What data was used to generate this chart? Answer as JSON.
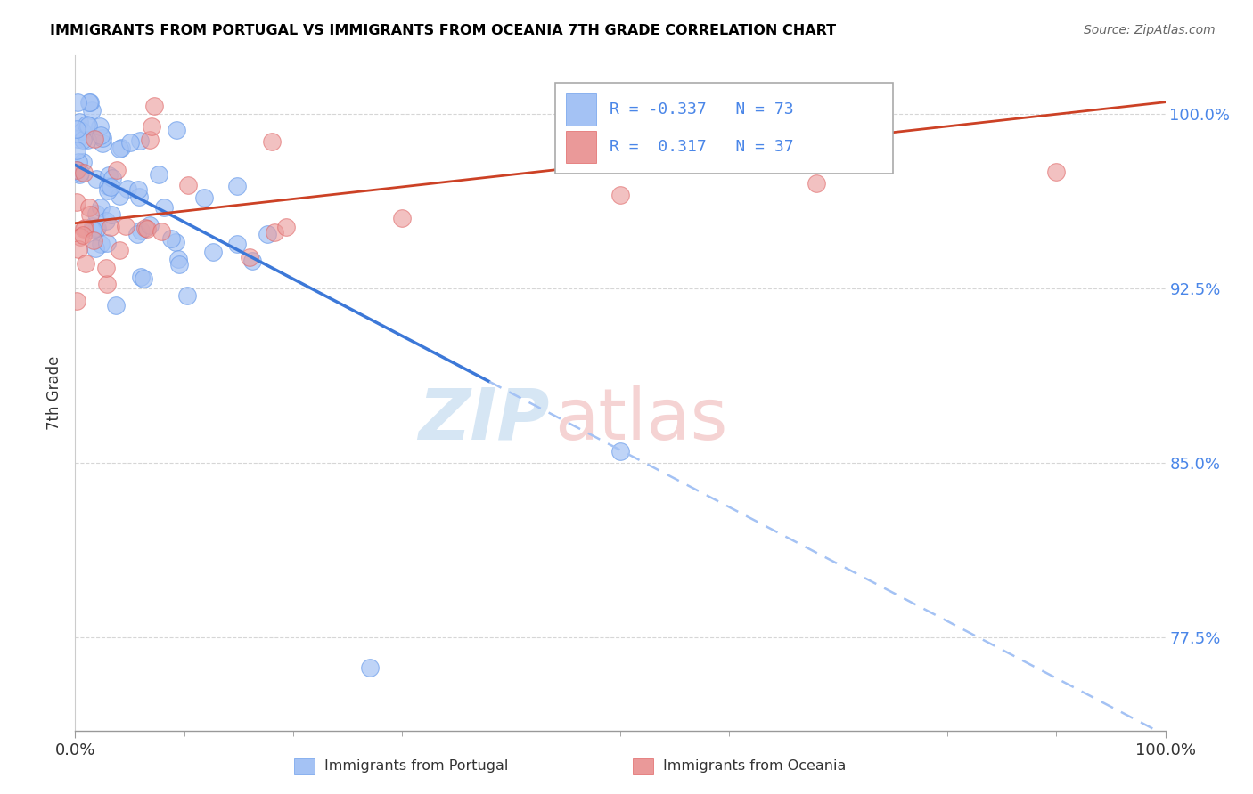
{
  "title": "IMMIGRANTS FROM PORTUGAL VS IMMIGRANTS FROM OCEANIA 7TH GRADE CORRELATION CHART",
  "source": "Source: ZipAtlas.com",
  "ylabel": "7th Grade",
  "yticks": [
    77.5,
    85.0,
    92.5,
    100.0
  ],
  "xlim": [
    0.0,
    1.0
  ],
  "ylim": [
    0.735,
    1.025
  ],
  "legend_line1": "R = -0.337   N = 73",
  "legend_line2": "R =  0.317   N = 37",
  "legend_label1": "Immigrants from Portugal",
  "legend_label2": "Immigrants from Oceania",
  "blue_color": "#a4c2f4",
  "pink_color": "#ea9999",
  "blue_edge": "#6d9eeb",
  "pink_edge": "#e06666",
  "trend_blue_solid": "#3c78d8",
  "trend_blue_dash": "#a4c2f4",
  "trend_pink": "#cc4125",
  "watermark_zip": "#cfe2f3",
  "watermark_atlas": "#f4cccc",
  "title_color": "#000000",
  "source_color": "#666666",
  "tick_color": "#4a86e8",
  "grid_color": "#cccccc"
}
